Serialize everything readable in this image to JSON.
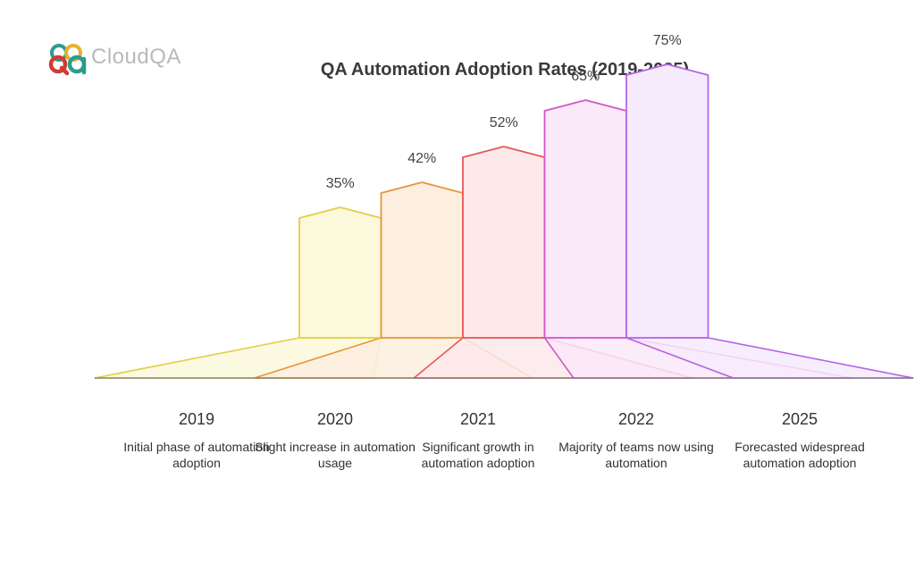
{
  "brand": {
    "wordmark": "CloudQA",
    "logo_icon": "qa-logo-icon",
    "logo_colors": [
      "#d13b34",
      "#2c9c8c",
      "#e6b12f"
    ]
  },
  "chart_data": {
    "type": "bar",
    "title": "QA Automation Adoption Rates (2019-2025)",
    "categories": [
      "2019",
      "2020",
      "2021",
      "2022",
      "2025"
    ],
    "descriptions": [
      "Initial phase of automation adoption",
      "Slight increase in automation usage",
      "Significant growth in automation adoption",
      "Majority of teams now using automation",
      "Forecasted widespread automation adoption"
    ],
    "values": [
      35,
      42,
      52,
      65,
      75
    ],
    "value_labels": [
      "35%",
      "42%",
      "52%",
      "65%",
      "75%"
    ],
    "unit": "%",
    "ylim": [
      0,
      100
    ],
    "colors": [
      "#e3cf45",
      "#e8953a",
      "#e5585a",
      "#cf57c8",
      "#b564e6"
    ],
    "fills": [
      "#fcf8dc",
      "#fdefdf",
      "#fde9ea",
      "#fae9f8",
      "#f6ebfd"
    ]
  }
}
